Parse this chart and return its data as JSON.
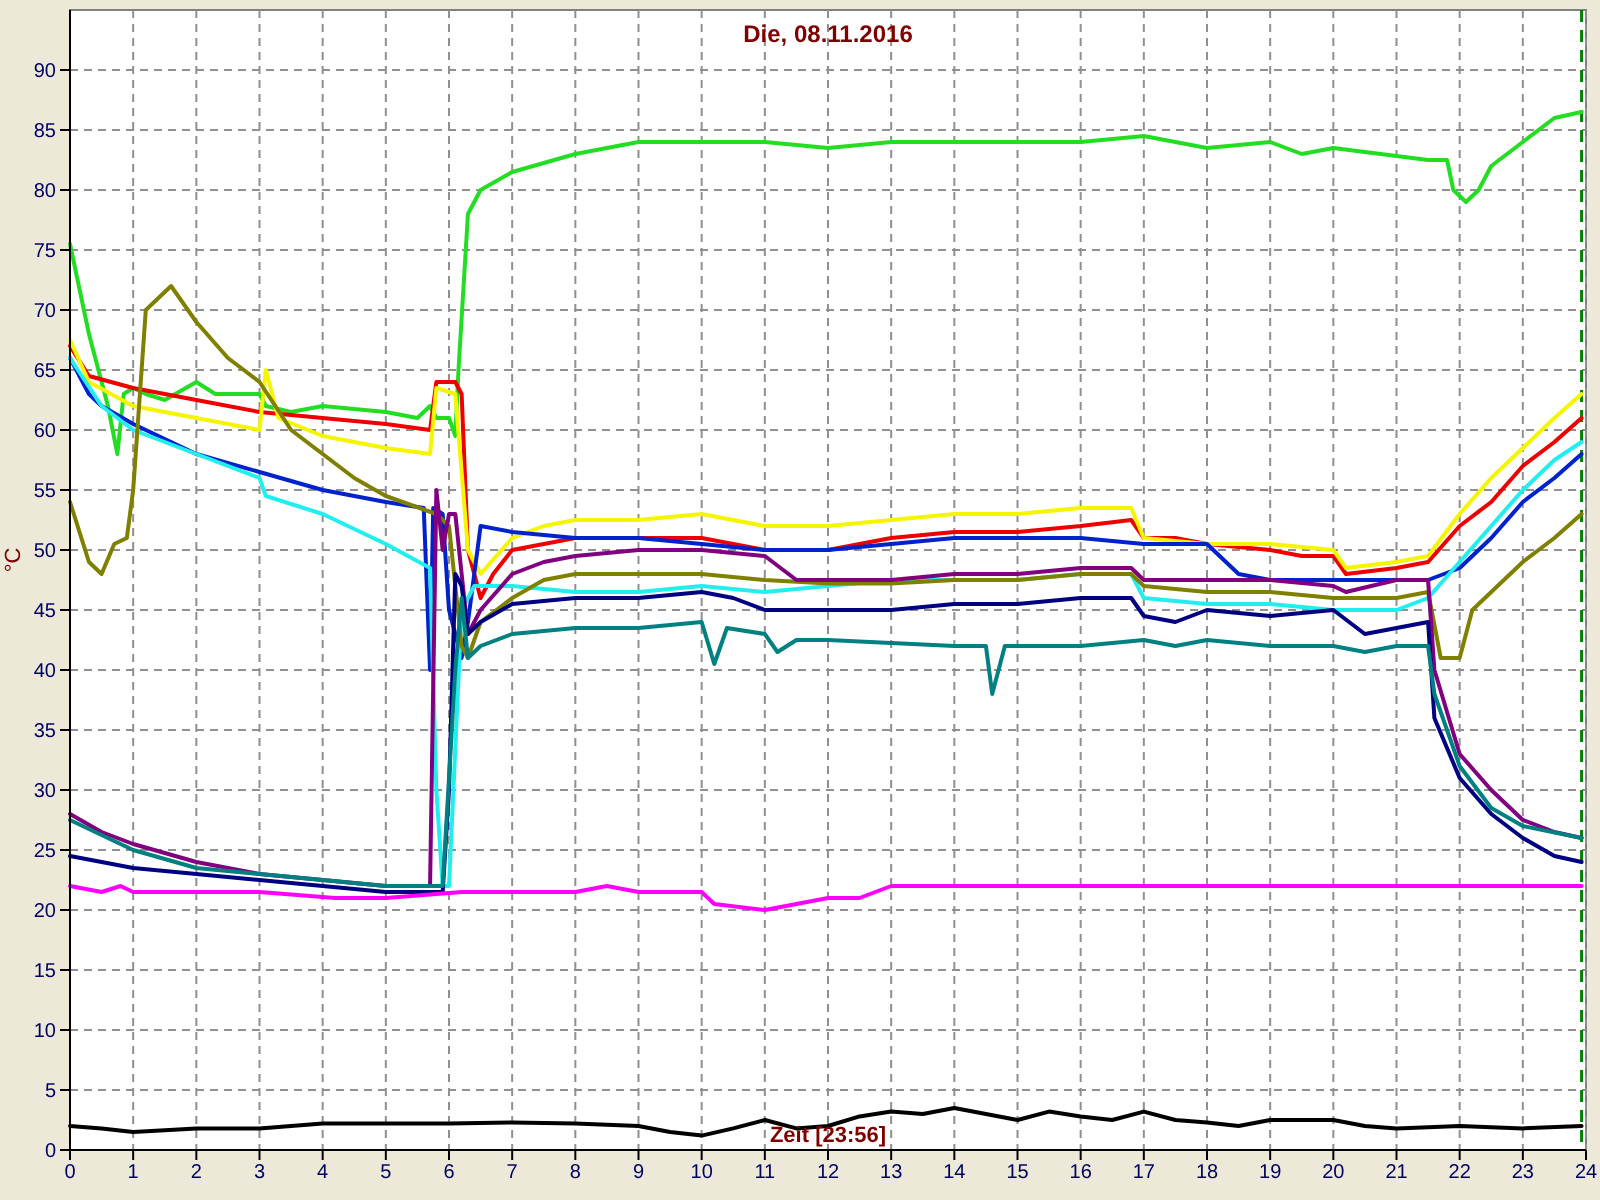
{
  "chart_data": {
    "type": "line",
    "title": "Die, 08.11.2016",
    "xlabel": "Zeit [23:56]",
    "ylabel": "°C",
    "xlim": [
      0,
      24
    ],
    "xticks": [
      0,
      1,
      2,
      3,
      4,
      5,
      6,
      7,
      8,
      9,
      10,
      11,
      12,
      13,
      14,
      15,
      16,
      17,
      18,
      19,
      20,
      21,
      22,
      23,
      24
    ],
    "ylim": [
      0,
      95
    ],
    "yticks": [
      0,
      5,
      10,
      15,
      20,
      25,
      30,
      35,
      40,
      45,
      50,
      55,
      60,
      65,
      70,
      75,
      80,
      85,
      90
    ],
    "grid": true,
    "line_style": "solid",
    "marker": "none",
    "ref_lines": [
      {
        "axis": "x",
        "value": 23.93,
        "color": "#008000",
        "line_style": "dashed"
      }
    ],
    "series": [
      {
        "color": "#22dd22",
        "x": [
          0,
          0.3,
          0.6,
          0.75,
          0.85,
          1,
          1.2,
          1.5,
          2,
          2.3,
          3,
          3.1,
          3.5,
          4,
          5,
          5.5,
          5.7,
          5.8,
          6,
          6.1,
          6.15,
          6.3,
          6.5,
          7,
          8,
          9,
          10,
          11,
          12,
          13,
          15,
          16,
          17,
          17.5,
          18,
          19,
          19.5,
          20,
          21.5,
          21.8,
          21.9,
          22.1,
          22.3,
          22.5,
          23,
          23.5,
          23.93
        ],
        "values": [
          75.5,
          68,
          62,
          58,
          63,
          63.5,
          63,
          62.5,
          64,
          63,
          63,
          62,
          61.5,
          62,
          61.5,
          61,
          62,
          61,
          61,
          59.5,
          65,
          78,
          80,
          81.5,
          83,
          84,
          84,
          84,
          83.5,
          84,
          84,
          84,
          84.5,
          84,
          83.5,
          84,
          83,
          83.5,
          82.5,
          82.5,
          80,
          79,
          80,
          82,
          84,
          86,
          86.5
        ]
      },
      {
        "color": "#ee0000",
        "x": [
          0,
          0.3,
          1,
          2,
          3,
          4,
          5,
          5.7,
          5.8,
          6.1,
          6.2,
          6.3,
          6.5,
          6.7,
          7,
          7.5,
          8,
          9,
          10,
          10.5,
          11,
          12,
          12.5,
          13,
          14,
          15,
          16,
          16.8,
          17,
          17.5,
          18,
          19,
          19.5,
          20,
          20.2,
          21,
          21.5,
          22,
          22.5,
          23,
          23.5,
          23.93
        ],
        "values": [
          67,
          64.5,
          63.5,
          62.5,
          61.5,
          61,
          60.5,
          60,
          64,
          64,
          63,
          50,
          46,
          48,
          50,
          50.5,
          51,
          51,
          51,
          50.5,
          50,
          50,
          50.5,
          51,
          51.5,
          51.5,
          52,
          52.5,
          51,
          51,
          50.5,
          50,
          49.5,
          49.5,
          48,
          48.5,
          49,
          52,
          54,
          57,
          59,
          61
        ]
      },
      {
        "color": "#f5f500",
        "x": [
          0,
          0.3,
          1,
          2,
          3,
          3.1,
          3.3,
          4,
          5,
          5.7,
          5.8,
          6.1,
          6.3,
          6.5,
          7,
          7.5,
          8,
          9,
          10,
          11,
          12,
          13,
          14,
          15,
          16,
          16.8,
          17,
          18,
          19,
          20,
          20.2,
          21,
          21.5,
          22,
          22.5,
          23,
          23.5,
          23.93
        ],
        "values": [
          67.5,
          64,
          62,
          61,
          60,
          65,
          61,
          59.5,
          58.5,
          58,
          63.5,
          63,
          50,
          48,
          51,
          52,
          52.5,
          52.5,
          53,
          52,
          52,
          52.5,
          53,
          53,
          53.5,
          53.5,
          51,
          50.5,
          50.5,
          50,
          48.5,
          49,
          49.5,
          53,
          56,
          58.5,
          61,
          63
        ]
      },
      {
        "color": "#0022cc",
        "x": [
          0,
          0.3,
          0.5,
          1,
          2,
          3,
          4,
          5,
          5.6,
          5.7,
          5.75,
          5.9,
          6,
          6.2,
          6.3,
          6.5,
          7,
          8,
          9,
          10,
          11,
          12,
          13,
          14,
          15,
          16,
          17,
          18,
          18.5,
          19,
          20,
          21,
          21.5,
          22,
          22.5,
          23,
          23.5,
          23.93
        ],
        "values": [
          66,
          63,
          62,
          60.5,
          58,
          56.5,
          55,
          54,
          53.5,
          40,
          53.5,
          53,
          45,
          41,
          44,
          52,
          51.5,
          51,
          51,
          50.5,
          50,
          50,
          50.5,
          51,
          51,
          51,
          50.5,
          50.5,
          48,
          47.5,
          47.5,
          47.5,
          47.5,
          48.5,
          51,
          54,
          56,
          58
        ]
      },
      {
        "color": "#22eeee",
        "x": [
          0,
          0.5,
          1,
          2,
          3,
          3.1,
          4,
          5,
          5.7,
          5.8,
          5.9,
          6,
          6.2,
          6.4,
          7,
          8,
          9,
          10,
          11,
          12,
          13,
          14,
          15,
          16,
          16.8,
          17,
          18,
          19,
          20,
          21,
          21.5,
          22,
          22.5,
          23,
          23.5,
          23.93
        ],
        "values": [
          66,
          62,
          60,
          58,
          56,
          54.5,
          53,
          50.5,
          48.5,
          30,
          22,
          22,
          45,
          47,
          47,
          46.5,
          46.5,
          47,
          46.5,
          47,
          47.5,
          47.5,
          47.5,
          48,
          48,
          46,
          45.5,
          45.5,
          45,
          45,
          46,
          49,
          52,
          55,
          57.5,
          59
        ]
      },
      {
        "color": "#808000",
        "x": [
          0,
          0.3,
          0.5,
          0.7,
          0.9,
          1,
          1.2,
          1.6,
          2,
          2.5,
          3,
          3.5,
          4,
          4.5,
          5,
          5.8,
          6,
          6.2,
          6.3,
          6.5,
          7,
          7.5,
          8,
          9,
          10,
          11,
          12,
          13,
          14,
          15,
          16,
          16.8,
          17,
          18,
          19,
          20,
          21,
          21.5,
          21.7,
          22,
          22.2,
          22.5,
          23,
          23.5,
          23.93
        ],
        "values": [
          54,
          49,
          48,
          50.5,
          51,
          55,
          70,
          72,
          69,
          66,
          64,
          60,
          58,
          56,
          54.5,
          53,
          52,
          42,
          41,
          44,
          46,
          47.5,
          48,
          48,
          48,
          47.5,
          47.2,
          47.2,
          47.5,
          47.5,
          48,
          48,
          47,
          46.5,
          46.5,
          46,
          46,
          46.5,
          41,
          41,
          45,
          46.5,
          49,
          51,
          53
        ]
      },
      {
        "color": "#800080",
        "x": [
          0,
          0.5,
          1,
          2,
          3,
          4,
          5,
          5.7,
          5.8,
          5.9,
          6,
          6.1,
          6.2,
          6.3,
          6.5,
          7,
          7.5,
          8,
          9,
          10,
          11,
          11.5,
          12,
          13,
          14,
          15,
          16,
          16.8,
          17,
          18,
          19,
          20,
          20.2,
          21,
          21.5,
          21.6,
          22,
          22.5,
          23,
          23.5,
          23.93
        ],
        "values": [
          28,
          26.5,
          25.5,
          24,
          23,
          22.5,
          22,
          22,
          55,
          50,
          53,
          53,
          48,
          43,
          45,
          48,
          49,
          49.5,
          50,
          50,
          49.5,
          47.5,
          47.5,
          47.5,
          48,
          48,
          48.5,
          48.5,
          47.5,
          47.5,
          47.5,
          47,
          46.5,
          47.5,
          47.5,
          40,
          33,
          30,
          27.5,
          26.5,
          26
        ]
      },
      {
        "color": "#000080",
        "x": [
          0,
          1,
          2,
          3,
          4,
          5,
          5.9,
          6,
          6.1,
          6.2,
          6.3,
          6.5,
          7,
          8,
          9,
          10,
          10.5,
          11,
          12,
          13,
          14,
          15,
          16,
          16.8,
          17,
          17.5,
          18,
          19,
          20,
          20.5,
          21,
          21.5,
          21.6,
          22,
          22.5,
          23,
          23.5,
          23.93
        ],
        "values": [
          24.5,
          23.5,
          23,
          22.5,
          22,
          21.5,
          21.5,
          30,
          48,
          47,
          43,
          44,
          45.5,
          46,
          46,
          46.5,
          46,
          45,
          45,
          45,
          45.5,
          45.5,
          46,
          46,
          44.5,
          44,
          45,
          44.5,
          45,
          43,
          43.5,
          44,
          36,
          31,
          28,
          26,
          24.5,
          24
        ]
      },
      {
        "color": "#008080",
        "x": [
          0,
          1,
          2,
          3,
          4,
          5,
          5.9,
          6.1,
          6.2,
          6.3,
          6.5,
          7,
          8,
          9,
          10,
          10.2,
          10.4,
          11,
          11.2,
          11.5,
          12,
          14,
          14.5,
          14.6,
          14.8,
          16,
          17,
          17.5,
          18,
          19,
          20,
          20.5,
          21,
          21.5,
          21.6,
          22,
          22.5,
          23,
          23.93
        ],
        "values": [
          27.5,
          25,
          23.5,
          23,
          22.5,
          22,
          22,
          40,
          46,
          41,
          42,
          43,
          43.5,
          43.5,
          44,
          40.5,
          43.5,
          43,
          41.5,
          42.5,
          42.5,
          42,
          42,
          38,
          42,
          42,
          42.5,
          42,
          42.5,
          42,
          42,
          41.5,
          42,
          42,
          38,
          32,
          28.5,
          27,
          26
        ]
      },
      {
        "color": "#ff00ff",
        "x": [
          0,
          0.5,
          0.8,
          1,
          3,
          4.2,
          5,
          6.2,
          8,
          8.5,
          9,
          10,
          10.2,
          11,
          11.5,
          12,
          12.5,
          13,
          16,
          17,
          18,
          23.93
        ],
        "values": [
          22,
          21.5,
          22,
          21.5,
          21.5,
          21,
          21,
          21.5,
          21.5,
          22,
          21.5,
          21.5,
          20.5,
          20,
          20.5,
          21,
          21,
          22,
          22,
          22,
          22,
          22
        ]
      },
      {
        "color": "#000000",
        "x": [
          0,
          0.5,
          1,
          2,
          3,
          4,
          5,
          6,
          7,
          8,
          9,
          9.5,
          10,
          10.5,
          11,
          11.5,
          12,
          12.5,
          13,
          13.5,
          14,
          14.5,
          15,
          15.5,
          16,
          16.5,
          17,
          17.5,
          18,
          18.5,
          19,
          20,
          20.5,
          21,
          22,
          23,
          23.93
        ],
        "values": [
          2,
          1.8,
          1.5,
          1.8,
          1.8,
          2.2,
          2.2,
          2.2,
          2.3,
          2.2,
          2,
          1.5,
          1.2,
          1.8,
          2.5,
          1.8,
          2,
          2.8,
          3.2,
          3,
          3.5,
          3,
          2.5,
          3.2,
          2.8,
          2.5,
          3.2,
          2.5,
          2.3,
          2,
          2.5,
          2.5,
          2,
          1.8,
          2,
          1.8,
          2
        ]
      }
    ]
  }
}
